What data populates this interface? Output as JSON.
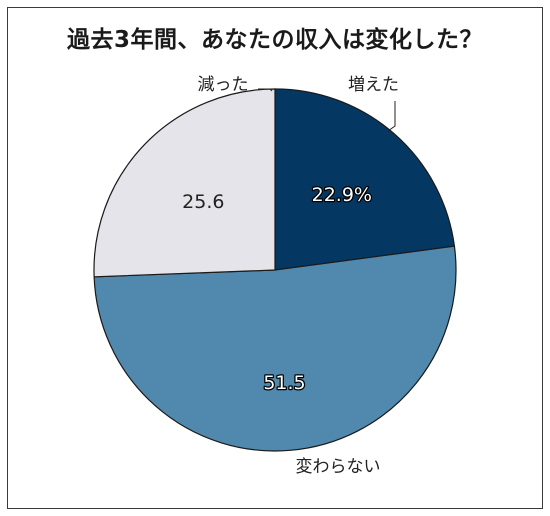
{
  "chart_data": {
    "type": "pie",
    "title": "過去3年間、あなたの収入は変化した？",
    "categories": [
      "増えた",
      "変わらない",
      "減った"
    ],
    "values": [
      22.9,
      51.5,
      25.6
    ],
    "value_labels": [
      "22.9%",
      "51.5",
      "25.6"
    ],
    "colors": [
      "#053763",
      "#5189ae",
      "#e4e4ea"
    ],
    "value_label_colors": [
      "#ffffff",
      "#ffffff",
      "#222222"
    ],
    "value_label_outline": [
      "#000000",
      "#000000",
      "none"
    ],
    "start_angle_deg": 0,
    "direction": "clockwise",
    "legend": "none"
  }
}
